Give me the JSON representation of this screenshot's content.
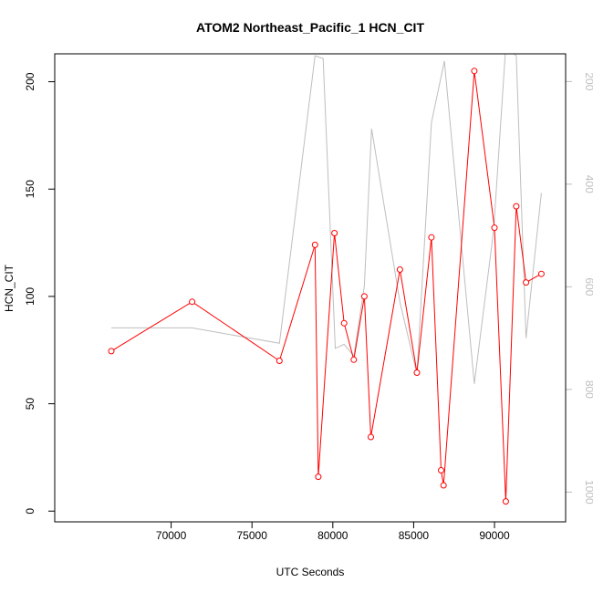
{
  "chart_data": {
    "type": "line",
    "title": "ATOM2 Northeast_Pacific_1 HCN_CIT",
    "xlabel": "UTC Seconds",
    "ylabel": "HCN_CIT",
    "y2label": "",
    "xlim": [
      62800,
      94400
    ],
    "ylim": [
      -5,
      213
    ],
    "y2lim": [
      1058,
      146
    ],
    "y2_reversed": true,
    "x_ticks": [
      70000,
      75000,
      80000,
      85000,
      90000
    ],
    "x_tick_labels": [
      "70000",
      "75000",
      "80000",
      "85000",
      "90000"
    ],
    "y_ticks": [
      0,
      50,
      100,
      150,
      200
    ],
    "y_tick_labels": [
      "0",
      "50",
      "100",
      "150",
      "200"
    ],
    "y2_ticks": [
      200,
      400,
      600,
      800,
      1000
    ],
    "y2_tick_labels": [
      "200",
      "400",
      "600",
      "800",
      "1000"
    ],
    "grid": false,
    "colors": {
      "primary": "#ff0000",
      "secondary": "#bebebe",
      "axis": "#000000"
    },
    "series": [
      {
        "role": "primary",
        "axis": "left",
        "marker": "open-circle",
        "points": [
          [
            66300,
            74.5
          ],
          [
            71300,
            97.5
          ],
          [
            76700,
            70
          ],
          [
            78900,
            124
          ],
          [
            79100,
            16
          ],
          [
            80100,
            129.5
          ],
          [
            80700,
            87.5
          ],
          [
            81300,
            70.5
          ],
          [
            81950,
            100
          ],
          [
            82350,
            34.5
          ],
          [
            84150,
            112.5
          ],
          [
            85200,
            64.5
          ],
          [
            86100,
            127.5
          ],
          [
            86700,
            19
          ],
          [
            86850,
            12
          ],
          [
            88750,
            205
          ],
          [
            90000,
            132
          ],
          [
            90700,
            4.5
          ],
          [
            91350,
            142
          ],
          [
            91950,
            106.5
          ],
          [
            92900,
            110.5
          ]
        ]
      },
      {
        "role": "secondary",
        "axis": "right",
        "marker": "none",
        "points": [
          [
            66300,
            680
          ],
          [
            71300,
            680
          ],
          [
            76700,
            710
          ],
          [
            78900,
            150
          ],
          [
            79400,
            155
          ],
          [
            80150,
            720
          ],
          [
            80700,
            712
          ],
          [
            81300,
            735
          ],
          [
            81950,
            598
          ],
          [
            82400,
            292
          ],
          [
            84150,
            630
          ],
          [
            85200,
            770
          ],
          [
            86100,
            280
          ],
          [
            86900,
            160
          ],
          [
            88750,
            789
          ],
          [
            89950,
            490
          ],
          [
            90700,
            130
          ],
          [
            91350,
            150
          ],
          [
            91950,
            700
          ],
          [
            92900,
            417
          ]
        ]
      }
    ]
  }
}
